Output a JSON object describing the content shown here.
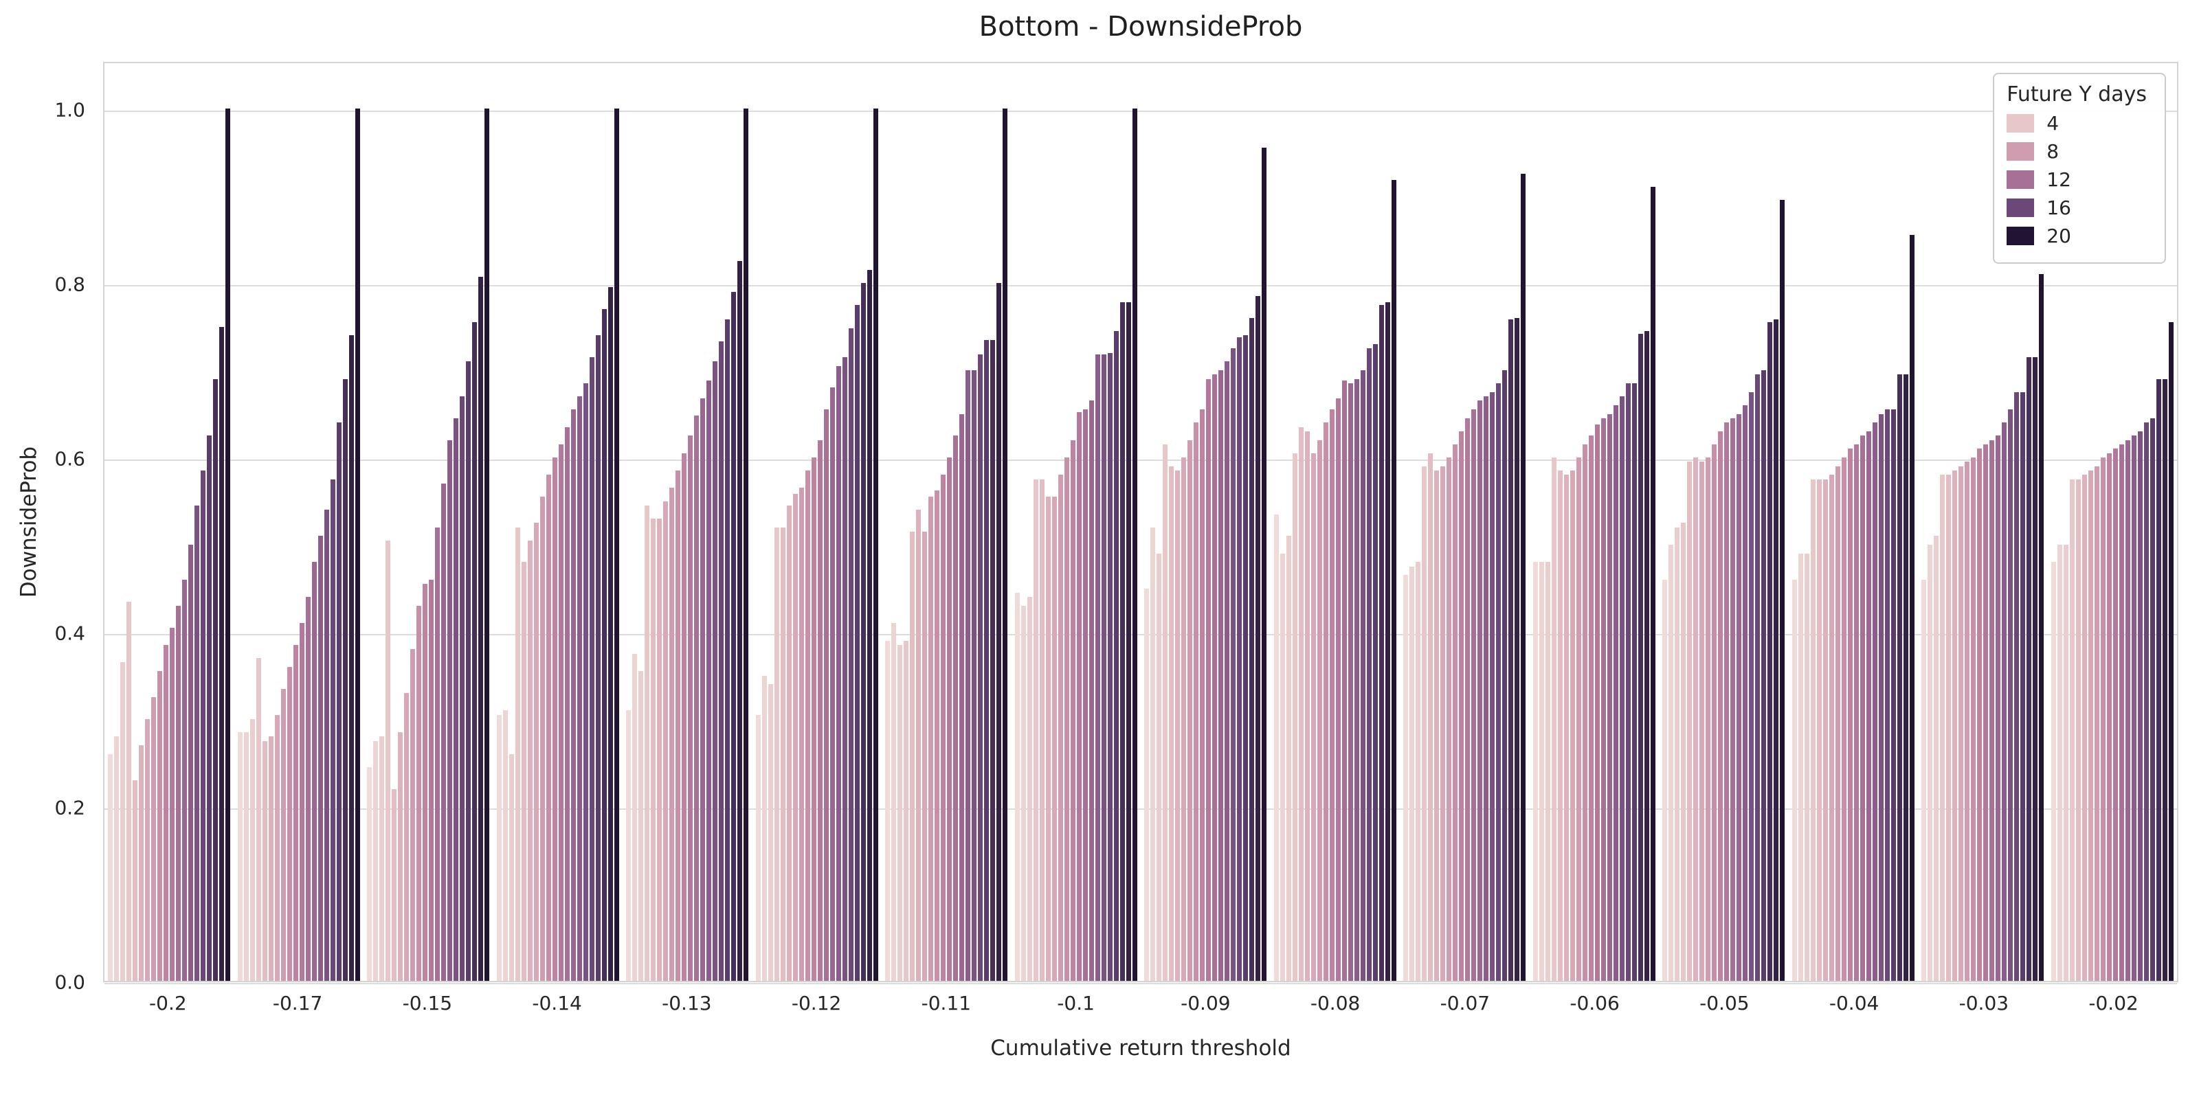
{
  "title": "Bottom - DownsideProb",
  "chart_data": {
    "type": "bar",
    "title": "Bottom - DownsideProb",
    "xlabel": "Cumulative return threshold",
    "ylabel": "DownsideProb",
    "ylim": [
      0,
      1.05
    ],
    "yticks": [
      0.0,
      0.2,
      0.4,
      0.6,
      0.8,
      1.0
    ],
    "grid": true,
    "palette": [
      "#f0dbd8",
      "#e7c6c6",
      "#d6a4b4",
      "#b97d9e",
      "#91618f",
      "#5d3f70",
      "#211432"
    ],
    "legend": {
      "title": "Future Y days",
      "position": "upper right",
      "entries": [
        {
          "label": "4",
          "hue_day": 4
        },
        {
          "label": "8",
          "hue_day": 8
        },
        {
          "label": "12",
          "hue_day": 12
        },
        {
          "label": "16",
          "hue_day": 16
        },
        {
          "label": "20",
          "hue_day": 20
        }
      ]
    },
    "hue_levels": [
      1,
      2,
      3,
      4,
      5,
      6,
      7,
      8,
      9,
      10,
      11,
      12,
      13,
      14,
      15,
      16,
      17,
      18,
      19,
      20
    ],
    "categories": [
      "-0.2",
      "-0.17",
      "-0.15",
      "-0.14",
      "-0.13",
      "-0.12",
      "-0.11",
      "-0.1",
      "-0.09",
      "-0.08",
      "-0.07",
      "-0.06",
      "-0.05",
      "-0.04",
      "-0.03",
      "-0.02"
    ],
    "values_by_category": [
      [
        0.26,
        0.28,
        0.365,
        0.435,
        0.23,
        0.27,
        0.3,
        0.325,
        0.355,
        0.385,
        0.405,
        0.43,
        0.46,
        0.5,
        0.545,
        0.585,
        0.625,
        0.69,
        0.75,
        1.0
      ],
      [
        0.285,
        0.285,
        0.3,
        0.37,
        0.275,
        0.28,
        0.305,
        0.335,
        0.36,
        0.385,
        0.41,
        0.44,
        0.48,
        0.51,
        0.54,
        0.575,
        0.64,
        0.69,
        0.74,
        1.0
      ],
      [
        0.245,
        0.275,
        0.28,
        0.505,
        0.22,
        0.285,
        0.33,
        0.38,
        0.43,
        0.455,
        0.46,
        0.52,
        0.57,
        0.62,
        0.645,
        0.67,
        0.71,
        0.755,
        0.807,
        1.0
      ],
      [
        0.305,
        0.31,
        0.26,
        0.52,
        0.48,
        0.505,
        0.525,
        0.555,
        0.58,
        0.6,
        0.615,
        0.635,
        0.655,
        0.67,
        0.685,
        0.715,
        0.74,
        0.77,
        0.795,
        1.0
      ],
      [
        0.31,
        0.375,
        0.355,
        0.545,
        0.53,
        0.53,
        0.55,
        0.565,
        0.585,
        0.605,
        0.625,
        0.648,
        0.668,
        0.688,
        0.71,
        0.733,
        0.758,
        0.79,
        0.825,
        1.0
      ],
      [
        0.305,
        0.35,
        0.34,
        0.52,
        0.52,
        0.545,
        0.558,
        0.565,
        0.585,
        0.6,
        0.62,
        0.655,
        0.68,
        0.705,
        0.715,
        0.748,
        0.775,
        0.8,
        0.815,
        1.0
      ],
      [
        0.39,
        0.41,
        0.385,
        0.39,
        0.515,
        0.54,
        0.515,
        0.555,
        0.562,
        0.58,
        0.6,
        0.625,
        0.65,
        0.7,
        0.7,
        0.718,
        0.735,
        0.735,
        0.8,
        1.0
      ],
      [
        0.445,
        0.43,
        0.44,
        0.575,
        0.575,
        0.555,
        0.555,
        0.58,
        0.6,
        0.62,
        0.652,
        0.655,
        0.665,
        0.718,
        0.718,
        0.72,
        0.745,
        0.778,
        0.778,
        1.0
      ],
      [
        0.45,
        0.52,
        0.49,
        0.615,
        0.59,
        0.585,
        0.6,
        0.62,
        0.64,
        0.655,
        0.69,
        0.695,
        0.7,
        0.71,
        0.725,
        0.738,
        0.74,
        0.76,
        0.785,
        0.955
      ],
      [
        0.535,
        0.49,
        0.51,
        0.605,
        0.635,
        0.63,
        0.605,
        0.62,
        0.64,
        0.655,
        0.668,
        0.688,
        0.685,
        0.69,
        0.7,
        0.725,
        0.73,
        0.775,
        0.778,
        0.918
      ],
      [
        0.465,
        0.475,
        0.48,
        0.59,
        0.605,
        0.585,
        0.59,
        0.6,
        0.615,
        0.63,
        0.645,
        0.655,
        0.665,
        0.67,
        0.675,
        0.685,
        0.7,
        0.758,
        0.76,
        0.925
      ],
      [
        0.48,
        0.48,
        0.48,
        0.6,
        0.585,
        0.58,
        0.585,
        0.6,
        0.615,
        0.625,
        0.638,
        0.645,
        0.65,
        0.66,
        0.67,
        0.685,
        0.685,
        0.742,
        0.745,
        0.91
      ],
      [
        0.46,
        0.5,
        0.52,
        0.525,
        0.595,
        0.6,
        0.595,
        0.6,
        0.615,
        0.63,
        0.64,
        0.645,
        0.65,
        0.66,
        0.675,
        0.695,
        0.7,
        0.755,
        0.758,
        0.895
      ],
      [
        0.46,
        0.49,
        0.49,
        0.575,
        0.575,
        0.575,
        0.58,
        0.59,
        0.6,
        0.61,
        0.615,
        0.625,
        0.63,
        0.64,
        0.65,
        0.655,
        0.655,
        0.695,
        0.695,
        0.855
      ],
      [
        0.46,
        0.5,
        0.51,
        0.58,
        0.58,
        0.585,
        0.59,
        0.595,
        0.6,
        0.61,
        0.615,
        0.62,
        0.625,
        0.64,
        0.655,
        0.675,
        0.675,
        0.715,
        0.715,
        0.81
      ],
      [
        0.48,
        0.5,
        0.5,
        0.575,
        0.575,
        0.58,
        0.585,
        0.59,
        0.6,
        0.605,
        0.61,
        0.615,
        0.62,
        0.625,
        0.63,
        0.64,
        0.645,
        0.69,
        0.69,
        0.755
      ]
    ]
  }
}
